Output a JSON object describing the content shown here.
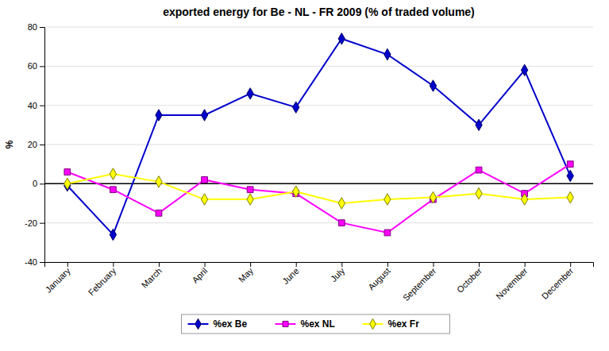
{
  "chart_data": {
    "type": "line",
    "title": "exported energy for Be - NL - FR  2009 (% of traded volume)",
    "y_label": "%",
    "categories": [
      "January",
      "February",
      "March",
      "April",
      "May",
      "June",
      "July",
      "August",
      "September",
      "October",
      "November",
      "December"
    ],
    "series": [
      {
        "name": "%ex Be",
        "color": "#0000CC",
        "marker": "diamond",
        "values": [
          -1,
          -26,
          35,
          35,
          46,
          39,
          74,
          66,
          50,
          30,
          58,
          4
        ]
      },
      {
        "name": "%ex NL",
        "color": "#FF00FF",
        "marker": "square",
        "values": [
          6,
          -3,
          -15,
          2,
          -3,
          -5,
          -20,
          -25,
          -8,
          7,
          -5,
          10
        ]
      },
      {
        "name": "%ex Fr",
        "color": "#FFFF00",
        "marker": "diamond",
        "values": [
          0,
          5,
          1,
          -8,
          -8,
          -4,
          -10,
          -8,
          -7,
          -5,
          -8,
          -7
        ]
      }
    ],
    "ylim": [
      -40,
      80
    ],
    "yticks": [
      -40,
      -20,
      0,
      20,
      40,
      60,
      80
    ],
    "grid": true,
    "legend": "bottom"
  }
}
